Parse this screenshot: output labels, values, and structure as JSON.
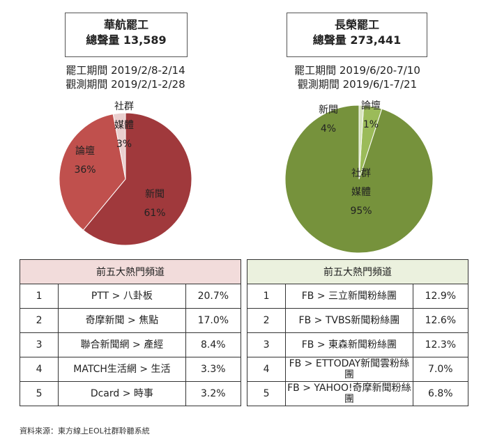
{
  "chart_data": [
    {
      "type": "pie",
      "title": "華航罷工",
      "subtitle": "總聲量 13,589",
      "notes": [
        "罷工期間 2019/2/8-2/14",
        "觀測期間 2019/2/1-2/28"
      ],
      "slices": [
        {
          "label_lines": [
            "新聞"
          ],
          "value": 61,
          "value_label": "61%",
          "color": "#a0393c"
        },
        {
          "label_lines": [
            "論壇"
          ],
          "value": 36,
          "value_label": "36%",
          "color": "#c0504d"
        },
        {
          "label_lines": [
            "社群",
            "媒體"
          ],
          "value": 3,
          "value_label": "3%",
          "color": "#eacfcf"
        }
      ]
    },
    {
      "type": "pie",
      "title": "長榮罷工",
      "subtitle": "總聲量 273,441",
      "notes": [
        "罷工期間 2019/6/20-7/10",
        "觀測期間 2019/6/1-7/21"
      ],
      "slices": [
        {
          "label_lines": [
            "社群",
            "媒體"
          ],
          "value": 95,
          "value_label": "95%",
          "color": "#76923c"
        },
        {
          "label_lines": [
            "新聞"
          ],
          "value": 4,
          "value_label": "4%",
          "color": "#9bbb59"
        },
        {
          "label_lines": [
            "論壇"
          ],
          "value": 1,
          "value_label": "1%",
          "color": "#d7e4bd"
        }
      ]
    },
    {
      "type": "table",
      "header": "前五大熱門頻道",
      "header_color": "#f2dcdb",
      "rows": [
        {
          "rank": "1",
          "channel": "PTT > 八卦板",
          "share": "20.7%"
        },
        {
          "rank": "2",
          "channel": "奇摩新聞 > 焦點",
          "share": "17.0%"
        },
        {
          "rank": "3",
          "channel": "聯合新聞網 > 產經",
          "share": "8.4%"
        },
        {
          "rank": "4",
          "channel": "MATCH生活網 > 生活",
          "share": "3.3%"
        },
        {
          "rank": "5",
          "channel": "Dcard > 時事",
          "share": "3.2%"
        }
      ]
    },
    {
      "type": "table",
      "header": "前五大熱門頻道",
      "header_color": "#ebf1de",
      "rows": [
        {
          "rank": "1",
          "channel": "FB > 三立新聞粉絲團",
          "share": "12.9%"
        },
        {
          "rank": "2",
          "channel": "FB > TVBS新聞粉絲團",
          "share": "12.6%"
        },
        {
          "rank": "3",
          "channel": "FB > 東森新聞粉絲團",
          "share": "12.3%"
        },
        {
          "rank": "4",
          "channel": "FB > ETTODAY新聞雲粉絲團",
          "share": "7.0%"
        },
        {
          "rank": "5",
          "channel": "FB > YAHOO!奇摩新聞粉絲團",
          "share": "6.8%"
        }
      ]
    }
  ],
  "footer": {
    "source": "資料來源：東方線上EOL社群聆聽系統"
  }
}
